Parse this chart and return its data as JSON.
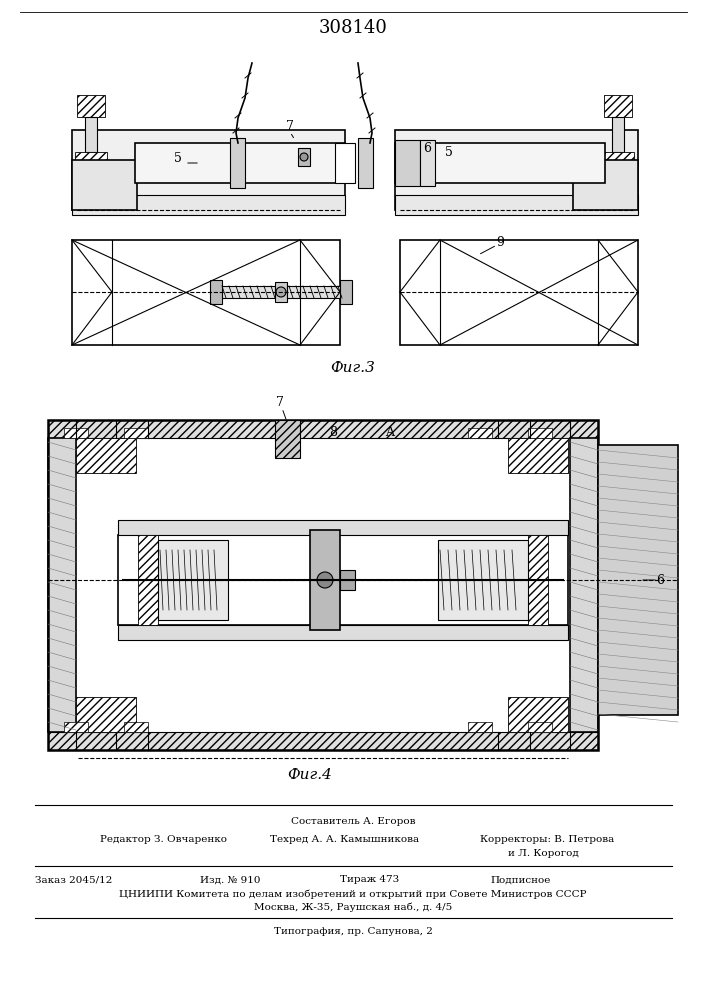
{
  "title": "308140",
  "fig3_label": "Фиг.3",
  "fig4_label": "Фиг.4",
  "footer_line1": "Составитель А. Егоров",
  "footer_line2_col1": "Редактор З. Овчаренко",
  "footer_line2_col2": "Техред А. А. Камышникова",
  "footer_line2_col3": "Корректоры: В. Петрова",
  "footer_line2_col3b": "и Л. Корогод",
  "footer_line3_col1": "Заказ 2045/12",
  "footer_line3_col2": "Изд. № 910",
  "footer_line3_col3": "Тираж 473",
  "footer_line3_col4": "Подписное",
  "footer_line4": "ЦНИИПИ Комитета по делам изобретений и открытий при Совете Министров СССР",
  "footer_line5": "Москва, Ж-35, Раушская наб., д. 4/5",
  "footer_line6": "Типография, пр. Сапунова, 2",
  "bg_color": "#ffffff",
  "line_color": "#000000",
  "hatch_color": "#555555"
}
